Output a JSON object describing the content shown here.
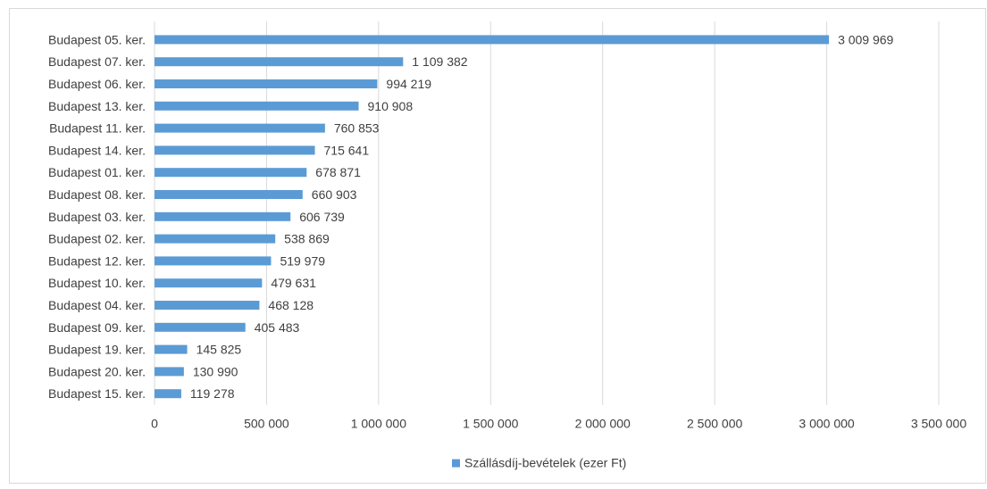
{
  "chart_data": {
    "type": "bar",
    "orientation": "horizontal",
    "categories": [
      "Budapest 05. ker.",
      "Budapest 07. ker.",
      "Budapest 06. ker.",
      "Budapest 13. ker.",
      "Budapest 11. ker.",
      "Budapest 14. ker.",
      "Budapest 01. ker.",
      "Budapest 08. ker.",
      "Budapest 03. ker.",
      "Budapest 02. ker.",
      "Budapest 12. ker.",
      "Budapest 10. ker.",
      "Budapest 04. ker.",
      "Budapest 09. ker.",
      "Budapest 19. ker.",
      "Budapest 20. ker.",
      "Budapest 15. ker."
    ],
    "series": [
      {
        "name": "Szállásdíj-bevételek (ezer Ft)",
        "color": "#5b9bd5",
        "values": [
          3009969,
          1109382,
          994219,
          910908,
          760853,
          715641,
          678871,
          660903,
          606739,
          538869,
          519979,
          479631,
          468128,
          405483,
          145825,
          130990,
          119278
        ],
        "labels": [
          "3 009 969",
          "1 109 382",
          "994 219",
          "910 908",
          "760 853",
          "715 641",
          "678 871",
          "660 903",
          "606 739",
          "538 869",
          "519 979",
          "479 631",
          "468 128",
          "405 483",
          "145 825",
          "130 990",
          "119 278"
        ]
      }
    ],
    "xlim": [
      0,
      3500000
    ],
    "x_ticks": [
      0,
      500000,
      1000000,
      1500000,
      2000000,
      2500000,
      3000000,
      3500000
    ],
    "x_tick_labels": [
      "0",
      "500 000",
      "1 000 000",
      "1 500 000",
      "2 000 000",
      "2 500 000",
      "3 000 000",
      "3 500 000"
    ],
    "title": "",
    "xlabel": "",
    "ylabel": "",
    "grid": "vertical",
    "legend": "bottom",
    "colors": {
      "bar": "#5b9bd5",
      "grid": "#d9d9d9",
      "text": "#404040"
    }
  }
}
